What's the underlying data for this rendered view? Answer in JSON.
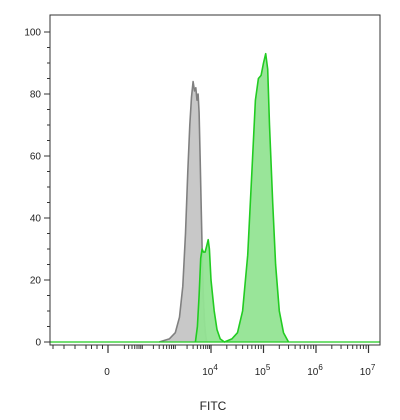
{
  "chart_data": {
    "type": "area",
    "title": "",
    "xlabel": "FITC",
    "ylabel": "",
    "x_scale": "logicle",
    "y_range": [
      0,
      100
    ],
    "y_ticks": [
      {
        "value": 0,
        "label": "0"
      },
      {
        "value": 20,
        "label": "20"
      },
      {
        "value": 40,
        "label": "40"
      },
      {
        "value": 60,
        "label": "60"
      },
      {
        "value": 80,
        "label": "80"
      },
      {
        "value": 100,
        "label": "100"
      }
    ],
    "x_ticks": [
      {
        "value": 0,
        "base": "0",
        "exp": ""
      },
      {
        "value": 10000,
        "base": "10",
        "exp": "4"
      },
      {
        "value": 100000,
        "base": "10",
        "exp": "5"
      },
      {
        "value": 1000000,
        "base": "10",
        "exp": "6"
      },
      {
        "value": 10000000,
        "base": "10",
        "exp": "7"
      }
    ],
    "legend": "none",
    "grid": false,
    "series": [
      {
        "fill": "#c8c8c8",
        "stroke": "#808080",
        "points": [
          [
            300,
            0
          ],
          [
            600,
            1
          ],
          [
            900,
            3
          ],
          [
            1200,
            8
          ],
          [
            1500,
            18
          ],
          [
            1800,
            35
          ],
          [
            2100,
            55
          ],
          [
            2400,
            70
          ],
          [
            2700,
            79
          ],
          [
            3000,
            84
          ],
          [
            3300,
            81
          ],
          [
            3600,
            82
          ],
          [
            3900,
            78
          ],
          [
            4200,
            80
          ],
          [
            4500,
            74
          ],
          [
            4800,
            60
          ],
          [
            5200,
            42
          ],
          [
            5600,
            26
          ],
          [
            6000,
            14
          ],
          [
            6500,
            6
          ],
          [
            7000,
            2
          ],
          [
            7500,
            0
          ]
        ]
      },
      {
        "fill": "#93e493",
        "stroke": "#22cc22",
        "points": [
          [
            3500,
            0
          ],
          [
            4000,
            5
          ],
          [
            4500,
            15
          ],
          [
            5000,
            27
          ],
          [
            5500,
            30
          ],
          [
            6000,
            29
          ],
          [
            6700,
            29
          ],
          [
            7500,
            31
          ],
          [
            8300,
            33
          ],
          [
            9000,
            30
          ],
          [
            10000,
            20
          ],
          [
            11500,
            10
          ],
          [
            13000,
            4
          ],
          [
            15000,
            1
          ],
          [
            18000,
            0
          ],
          [
            25000,
            1
          ],
          [
            32000,
            3
          ],
          [
            40000,
            10
          ],
          [
            50000,
            28
          ],
          [
            60000,
            55
          ],
          [
            70000,
            78
          ],
          [
            80000,
            85
          ],
          [
            90000,
            86
          ],
          [
            100000,
            90
          ],
          [
            110000,
            93
          ],
          [
            120000,
            88
          ],
          [
            130000,
            70
          ],
          [
            150000,
            45
          ],
          [
            170000,
            25
          ],
          [
            200000,
            10
          ],
          [
            240000,
            3
          ],
          [
            300000,
            0
          ]
        ]
      }
    ]
  }
}
